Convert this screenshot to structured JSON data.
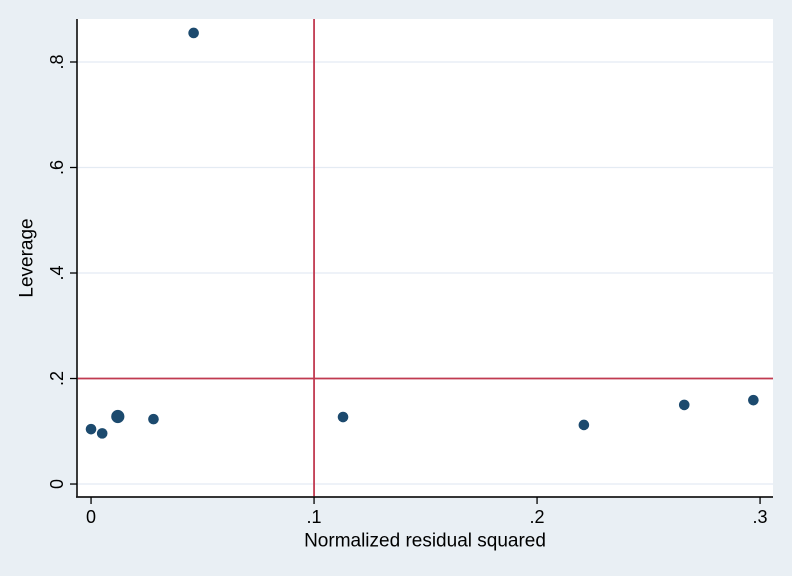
{
  "figure": {
    "background_color": "#e9eff4",
    "plot_background_color": "#ffffff"
  },
  "chart_data": {
    "type": "scatter",
    "title": "",
    "xlabel": "Normalized residual squared",
    "ylabel": "Leverage",
    "xlim": [
      -0.0063,
      0.3058
    ],
    "ylim": [
      -0.0246,
      0.8815
    ],
    "grid": "horizontal",
    "grid_color": "#e4ebf3",
    "axis_color": "#1a1a1a",
    "tick_color": "#000000",
    "marker_color": "#1c4a6e",
    "ref_line_color": "#c13a50",
    "legend": "none",
    "x_ticks": [
      {
        "value": 0.0,
        "label": "0"
      },
      {
        "value": 0.1,
        "label": ".1"
      },
      {
        "value": 0.2,
        "label": ".2"
      },
      {
        "value": 0.3,
        "label": ".3"
      }
    ],
    "y_ticks": [
      {
        "value": 0.0,
        "label": "0"
      },
      {
        "value": 0.2,
        "label": ".2"
      },
      {
        "value": 0.4,
        "label": ".4"
      },
      {
        "value": 0.6,
        "label": ".6"
      },
      {
        "value": 0.8,
        "label": ".8"
      }
    ],
    "ref_lines": {
      "vertical_x": 0.1,
      "horizontal_y": 0.2
    },
    "points": [
      {
        "x": 0.0,
        "y": 0.104,
        "size": "normal"
      },
      {
        "x": 0.005,
        "y": 0.096,
        "size": "normal"
      },
      {
        "x": 0.012,
        "y": 0.128,
        "size": "large"
      },
      {
        "x": 0.028,
        "y": 0.123,
        "size": "normal"
      },
      {
        "x": 0.046,
        "y": 0.855,
        "size": "normal"
      },
      {
        "x": 0.113,
        "y": 0.127,
        "size": "normal"
      },
      {
        "x": 0.221,
        "y": 0.112,
        "size": "normal"
      },
      {
        "x": 0.266,
        "y": 0.15,
        "size": "normal"
      },
      {
        "x": 0.297,
        "y": 0.159,
        "size": "normal"
      }
    ]
  }
}
